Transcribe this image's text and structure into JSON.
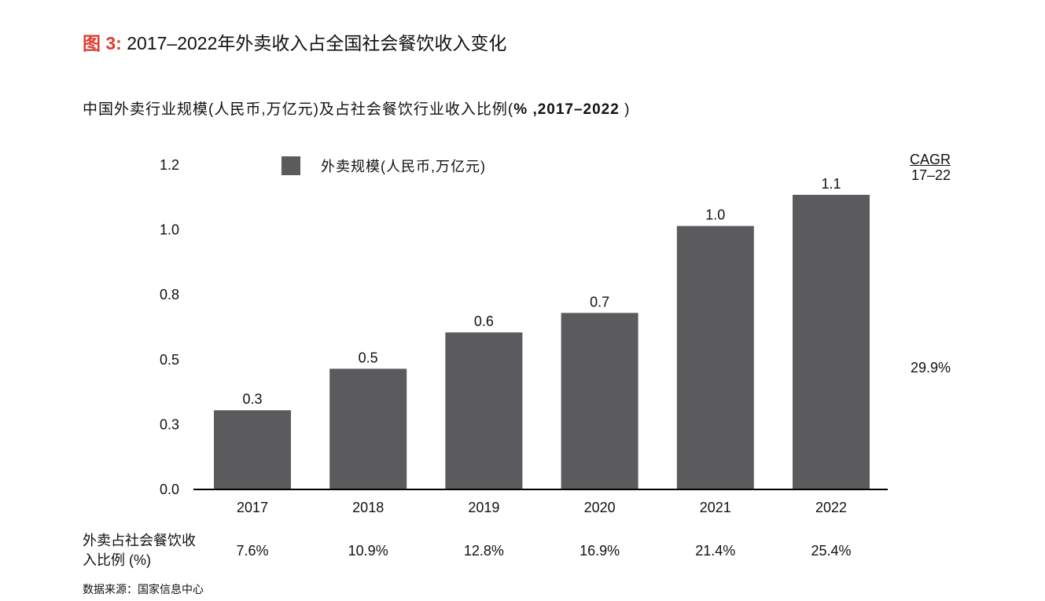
{
  "figure": {
    "tag": "图 3:",
    "title": "2017–2022年外卖收入占全国社会餐饮收入变化"
  },
  "subtitle": {
    "main": "中国外卖行业规模(人民币,万亿元)及占社会餐饮行业收入比例(",
    "bold": "% ,2017–2022 ",
    "end": ")"
  },
  "cagr": {
    "label": "CAGR",
    "period": "17–22",
    "value": "29.9%"
  },
  "share_row": {
    "label": "外卖占社会餐饮收入比例 (%)",
    "values": [
      "7.6%",
      "10.9%",
      "12.8%",
      "16.9%",
      "21.4%",
      "25.4%"
    ]
  },
  "source": "数据来源：国家信息中心",
  "colors": {
    "bar": "#5b5a5c",
    "accent": "#e03c31",
    "axis": "#000000"
  },
  "chart_data": {
    "type": "bar",
    "categories": [
      "2017",
      "2018",
      "2019",
      "2020",
      "2021",
      "2022"
    ],
    "series": [
      {
        "name": "外卖规模(人民币,万亿元)",
        "values": [
          0.3,
          0.5,
          0.6,
          0.7,
          1.0,
          1.1
        ]
      }
    ],
    "bar_values_precise": [
      0.305,
      0.465,
      0.605,
      0.68,
      1.015,
      1.135
    ],
    "yticks": [
      "0.0",
      "0.3",
      "0.5",
      "0.8",
      "1.0",
      "1.2"
    ],
    "ytick_values": [
      0,
      0.25,
      0.5,
      0.75,
      1.0,
      1.25
    ],
    "ylim": [
      0,
      1.25
    ],
    "legend": "top-center",
    "grid": false,
    "title": "",
    "xlabel": "",
    "ylabel": ""
  }
}
